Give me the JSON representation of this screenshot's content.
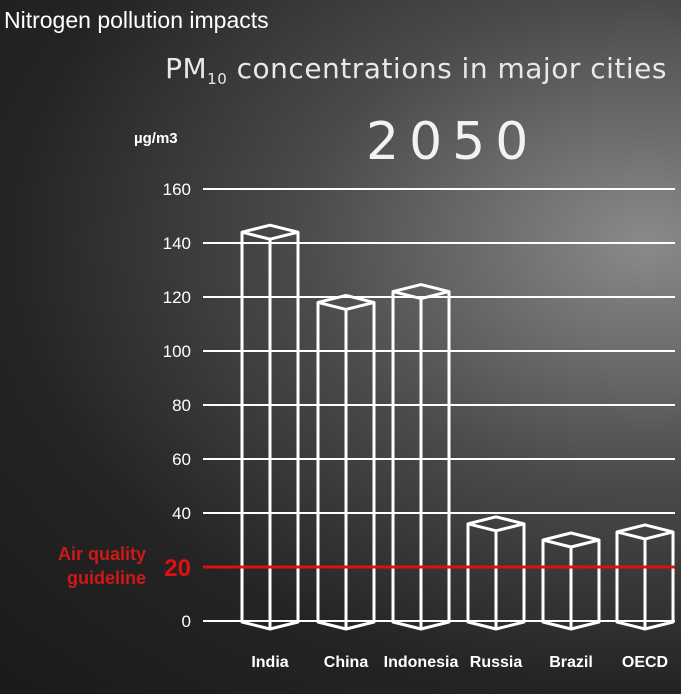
{
  "video_title": "Nitrogen pollution impacts",
  "chart_data": {
    "type": "bar",
    "title_prefix": "PM",
    "title_subscript": "10",
    "title_suffix": " concentrations in major cities",
    "subtitle": "2050",
    "ylabel": "µg/m3",
    "xlabel": "",
    "ylim": [
      0,
      160
    ],
    "yticks": [
      "0",
      "20",
      "40",
      "60",
      "80",
      "100",
      "120",
      "140",
      "160"
    ],
    "grid": true,
    "categories": [
      "India",
      "China",
      "Indonesia",
      "Russia",
      "Brazil",
      "OECD"
    ],
    "values": [
      144,
      118,
      122,
      36,
      30,
      33
    ],
    "reference_line": {
      "value": 20,
      "label_line1": "Air quality",
      "label_line2": "guideline",
      "value_label": "20",
      "color": "#e01010"
    },
    "colors": {
      "bars": "#ffffff",
      "grid": "#ffffff",
      "text": "#ffffff"
    }
  }
}
